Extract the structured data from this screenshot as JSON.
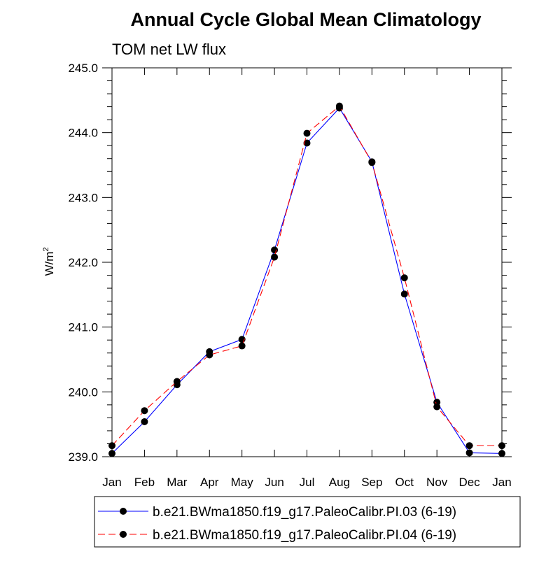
{
  "chart_data": {
    "type": "line",
    "title": "Annual Cycle Global Mean Climatology",
    "subtitle": "TOM net LW flux",
    "ylabel": "W/m",
    "ylabel_superscript": "2",
    "categories": [
      "Jan",
      "Feb",
      "Mar",
      "Apr",
      "May",
      "Jun",
      "Jul",
      "Aug",
      "Sep",
      "Oct",
      "Nov",
      "Dec",
      "Jan"
    ],
    "ylim": [
      239.0,
      245.0
    ],
    "yticks": [
      "239.0",
      "240.0",
      "241.0",
      "242.0",
      "243.0",
      "244.0",
      "245.0"
    ],
    "grid": false,
    "legend_position": "bottom",
    "series": [
      {
        "name": "b.e21.BWma1850.f19_g17.PaleoCalibr.PI.03 (6-19)",
        "color": "#0000ff",
        "line_style": "solid",
        "marker": "filled-circle",
        "values": [
          239.05,
          239.54,
          240.11,
          240.62,
          240.81,
          242.19,
          243.84,
          244.38,
          243.55,
          241.51,
          239.84,
          239.06,
          239.05
        ]
      },
      {
        "name": "b.e21.BWma1850.f19_g17.PaleoCalibr.PI.04 (6-19)",
        "color": "#ff0000",
        "line_style": "dashed",
        "marker": "filled-circle",
        "values": [
          239.17,
          239.71,
          240.16,
          240.57,
          240.71,
          242.08,
          243.99,
          244.41,
          243.54,
          241.76,
          239.77,
          239.17,
          239.17
        ]
      }
    ]
  }
}
